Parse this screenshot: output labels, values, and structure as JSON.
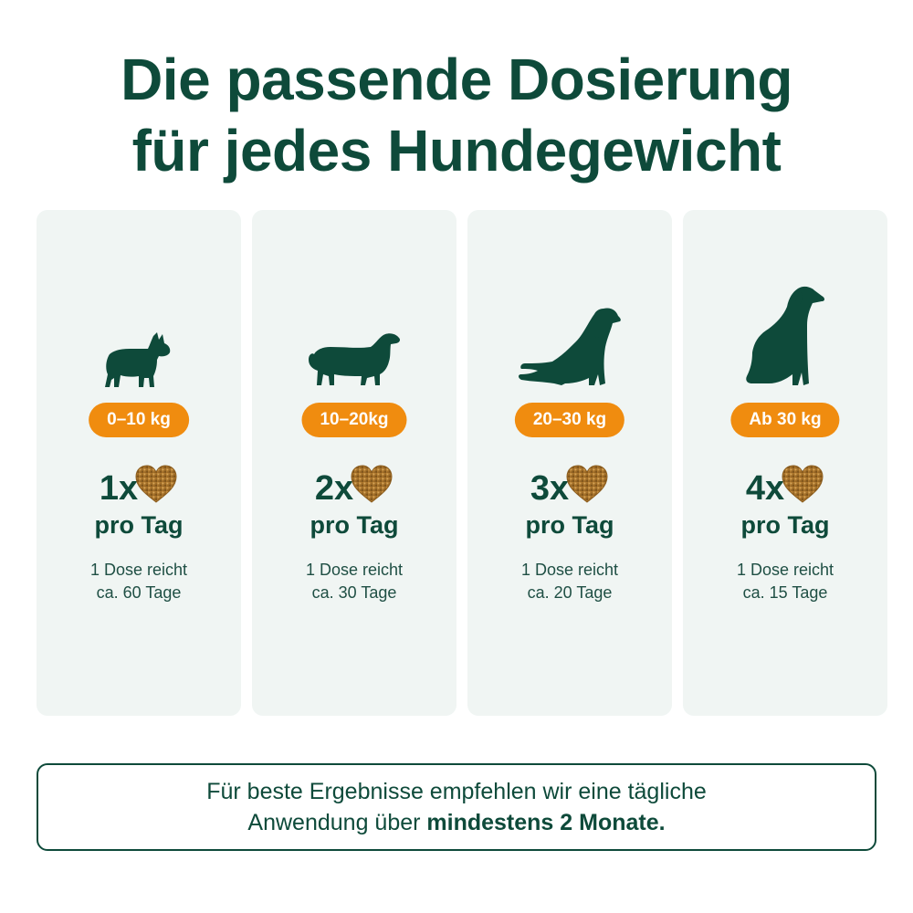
{
  "title": {
    "line1": "Die passende Dosierung",
    "line2": "für jedes Hundegewicht"
  },
  "colors": {
    "dark_green": "#0e4a3a",
    "card_bg": "#f0f5f3",
    "orange": "#f08c0f"
  },
  "cards": [
    {
      "dog_icon": "french-bulldog-icon",
      "weight": "0–10 kg",
      "dose": "1x",
      "per_day": "pro Tag",
      "note_line1": "1 Dose reicht",
      "note_line2": "ca. 60 Tage"
    },
    {
      "dog_icon": "dachshund-icon",
      "weight": "10–20kg",
      "dose": "2x",
      "per_day": "pro Tag",
      "note_line1": "1 Dose reicht",
      "note_line2": "ca. 30 Tage"
    },
    {
      "dog_icon": "retriever-icon",
      "weight": "20–30 kg",
      "dose": "3x",
      "per_day": "pro Tag",
      "note_line1": "1 Dose reicht",
      "note_line2": "ca. 20 Tage"
    },
    {
      "dog_icon": "great-dane-icon",
      "weight": "Ab 30 kg",
      "dose": "4x",
      "per_day": "pro Tag",
      "note_line1": "1 Dose reicht",
      "note_line2": "ca. 15 Tage"
    }
  ],
  "footer": {
    "line1": "Für beste Ergebnisse empfehlen wir eine tägliche",
    "line2_prefix": "Anwendung über ",
    "line2_bold": "mindestens 2 Monate."
  }
}
